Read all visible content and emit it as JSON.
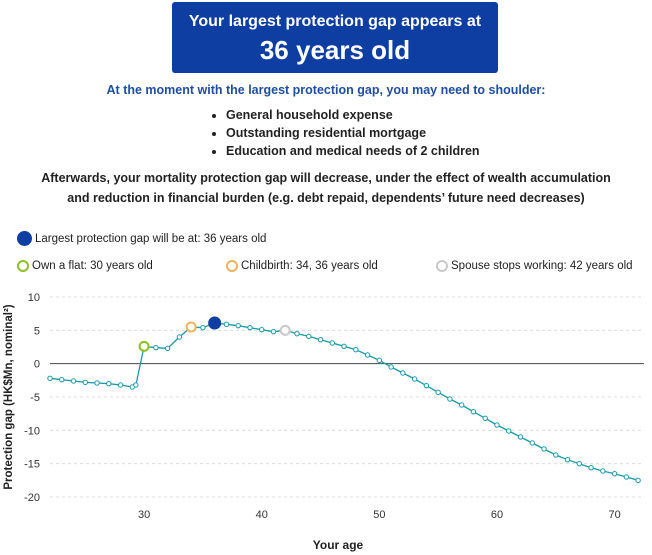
{
  "hero": {
    "line1": "Your largest protection gap appears at",
    "line2": "36 years old"
  },
  "subheading": "At the moment with the largest protection gap, you may need to shoulder:",
  "items": [
    "General household expense",
    "Outstanding residential mortgage",
    "Education and medical needs of 2 children"
  ],
  "afterwards": "Afterwards, your mortality protection gap will decrease, under the effect of wealth accumulation and reduction in financial burden (e.g. debt repaid, dependents’ future need decreases)",
  "legend": {
    "main": {
      "label": "Largest protection gap will be at: 36 years old",
      "color": "#0f3ea3"
    },
    "events": [
      {
        "label": "Own a flat: 30 years old",
        "color": "#8dbf2a"
      },
      {
        "label": "Childbirth: 34, 36 years old",
        "color": "#f2b25c"
      },
      {
        "label": "Spouse stops working: 42 years old",
        "color": "#c9c9c9"
      }
    ]
  },
  "chart_data": {
    "type": "line",
    "xlabel": "Your age",
    "ylabel": "Protection gap (HK$Mn, nominal²)",
    "xlim": [
      22,
      72.5
    ],
    "ylim": [
      -20,
      10
    ],
    "xticks": [
      30,
      40,
      50,
      60,
      70
    ],
    "yticks": [
      -20,
      -15,
      -10,
      -5,
      0,
      5,
      10
    ],
    "line_color": "#1a9aa6",
    "grid": "horizontal dashed",
    "series": [
      {
        "x": [
          22,
          23,
          24,
          25,
          26,
          27,
          28,
          29,
          29.3,
          30,
          31,
          32,
          33,
          34,
          35,
          36,
          37,
          38,
          39,
          40,
          41,
          42,
          43,
          44,
          45,
          46,
          47,
          48,
          49,
          50,
          51,
          52,
          53,
          54,
          55,
          56,
          57,
          58,
          59,
          60,
          61,
          62,
          63,
          64,
          65,
          66,
          67,
          68,
          69,
          70,
          71,
          72
        ],
        "y": [
          -2.2,
          -2.4,
          -2.6,
          -2.8,
          -2.9,
          -3.0,
          -3.2,
          -3.5,
          -3.2,
          2.6,
          2.4,
          2.3,
          4.0,
          5.5,
          5.4,
          6.1,
          5.9,
          5.7,
          5.4,
          5.1,
          4.8,
          5.0,
          4.5,
          4.1,
          3.6,
          3.1,
          2.6,
          2.1,
          1.3,
          0.5,
          -0.5,
          -1.4,
          -2.3,
          -3.3,
          -4.3,
          -5.3,
          -6.2,
          -7.2,
          -8.2,
          -9.2,
          -10.1,
          -11.0,
          -11.9,
          -12.8,
          -13.7,
          -14.4,
          -15.0,
          -15.6,
          -16.1,
          -16.5,
          -17.0,
          -17.5
        ]
      }
    ],
    "markers": [
      {
        "x": 36,
        "y": 6.1,
        "kind": "largest",
        "color": "#0f3ea3"
      },
      {
        "x": 30,
        "y": 2.6,
        "kind": "flat",
        "color": "#8dbf2a"
      },
      {
        "x": 34,
        "y": 5.5,
        "kind": "childbirth",
        "color": "#f2b25c"
      },
      {
        "x": 42,
        "y": 5.0,
        "kind": "spouse",
        "color": "#c9c9c9"
      }
    ]
  }
}
